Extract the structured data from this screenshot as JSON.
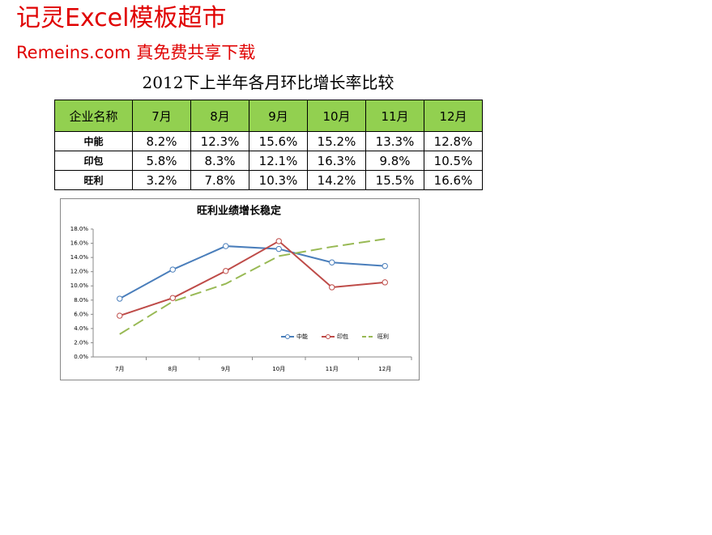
{
  "watermark": {
    "line1": "记灵Excel模板超市",
    "line2": "Remeins.com 真免费共享下载"
  },
  "title": "2012下上半年各月环比增长率比较",
  "table": {
    "header": [
      "企业名称",
      "7月",
      "8月",
      "9月",
      "10月",
      "11月",
      "12月"
    ],
    "rows": [
      [
        "中能",
        "8.2%",
        "12.3%",
        "15.6%",
        "15.2%",
        "13.3%",
        "12.8%"
      ],
      [
        "印包",
        "5.8%",
        "8.3%",
        "12.1%",
        "16.3%",
        "9.8%",
        "10.5%"
      ],
      [
        "旺利",
        "3.2%",
        "7.8%",
        "10.3%",
        "14.2%",
        "15.5%",
        "16.6%"
      ]
    ]
  },
  "chart_data": {
    "type": "line",
    "title": "旺利业绩增长稳定",
    "categories": [
      "7月",
      "8月",
      "9月",
      "10月",
      "11月",
      "12月"
    ],
    "series": [
      {
        "name": "中能",
        "color": "#4a7ebb",
        "values": [
          8.2,
          12.3,
          15.6,
          15.2,
          13.3,
          12.8
        ],
        "markers": true,
        "dashed": false
      },
      {
        "name": "印包",
        "color": "#be4b48",
        "values": [
          5.8,
          8.3,
          12.1,
          16.3,
          9.8,
          10.5
        ],
        "markers": true,
        "dashed": false
      },
      {
        "name": "旺利",
        "color": "#98b954",
        "values": [
          3.2,
          7.8,
          10.3,
          14.2,
          15.5,
          16.6
        ],
        "markers": false,
        "dashed": true
      }
    ],
    "ylim": [
      0,
      18
    ],
    "yticks": [
      {
        "value": 0,
        "label": "0.0%"
      },
      {
        "value": 2,
        "label": "2.0%"
      },
      {
        "value": 4,
        "label": "4.0%"
      },
      {
        "value": 6,
        "label": "6.0%"
      },
      {
        "value": 8,
        "label": "8.0%"
      },
      {
        "value": 10,
        "label": "10.0%"
      },
      {
        "value": 12,
        "label": "12.0%"
      },
      {
        "value": 14,
        "label": "14.0%"
      },
      {
        "value": 16,
        "label": "16.0%"
      },
      {
        "value": 18,
        "label": "18.0%"
      }
    ],
    "grid": false
  }
}
